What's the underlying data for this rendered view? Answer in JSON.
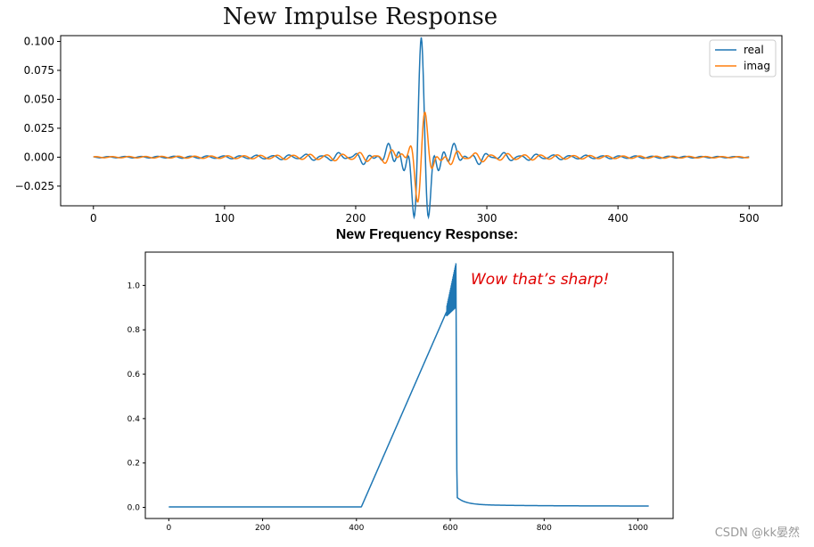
{
  "colors": {
    "real": "#1f77b4",
    "imag": "#ff7f0e",
    "annotation": "#e00000"
  },
  "chart_data": [
    {
      "type": "line",
      "title": "New Impulse Response",
      "xlabel": "",
      "ylabel": "",
      "xlim": [
        -25,
        525
      ],
      "ylim": [
        -0.042,
        0.105
      ],
      "xticks": [
        0,
        100,
        200,
        300,
        400,
        500
      ],
      "xtick_labels": [
        "0",
        "100",
        "200",
        "300",
        "400",
        "500"
      ],
      "yticks": [
        -0.025,
        0,
        0.025,
        0.05,
        0.075,
        0.1
      ],
      "ytick_labels": [
        "−0.025",
        "0.000",
        "0.025",
        "0.050",
        "0.075",
        "0.100"
      ],
      "legend": [
        "real",
        "imag"
      ],
      "legend_position": "top-right",
      "series": [
        {
          "name": "real",
          "description": "oscillating sinc-like pulse centered near x=250, peak ~0.099"
        },
        {
          "name": "imag",
          "description": "oscillating pulse, peaks ~0.042 near x=254 and min ~-0.042 near x=246"
        }
      ],
      "key_points": {
        "real_peak": [
          250,
          0.099
        ],
        "imag_max": [
          254,
          0.042
        ],
        "imag_min": [
          246,
          -0.042
        ]
      }
    },
    {
      "type": "line",
      "title": "New Frequency Response:",
      "xlabel": "",
      "ylabel": "",
      "xlim": [
        -50,
        1075
      ],
      "ylim": [
        -0.05,
        1.15
      ],
      "xticks": [
        0,
        200,
        400,
        600,
        800,
        1000
      ],
      "xtick_labels": [
        "0",
        "200",
        "400",
        "600",
        "800",
        "1000"
      ],
      "yticks": [
        0,
        0.2,
        0.4,
        0.6,
        0.8,
        1.0
      ],
      "ytick_labels": [
        "0.0",
        "0.2",
        "0.4",
        "0.6",
        "0.8",
        "1.0"
      ],
      "annotation": "Wow that’s sharp!",
      "series": [
        {
          "name": "response",
          "x": [
            0,
            410,
            598,
            605,
            610,
            612,
            615,
            620,
            640,
            700,
            800,
            1023
          ],
          "y": [
            0,
            0,
            0.91,
            0.95,
            1.0,
            1.09,
            0.15,
            0.03,
            0.01,
            0.005,
            0.002,
            0
          ]
        }
      ]
    }
  ],
  "watermark": "CSDN @kk晏然"
}
